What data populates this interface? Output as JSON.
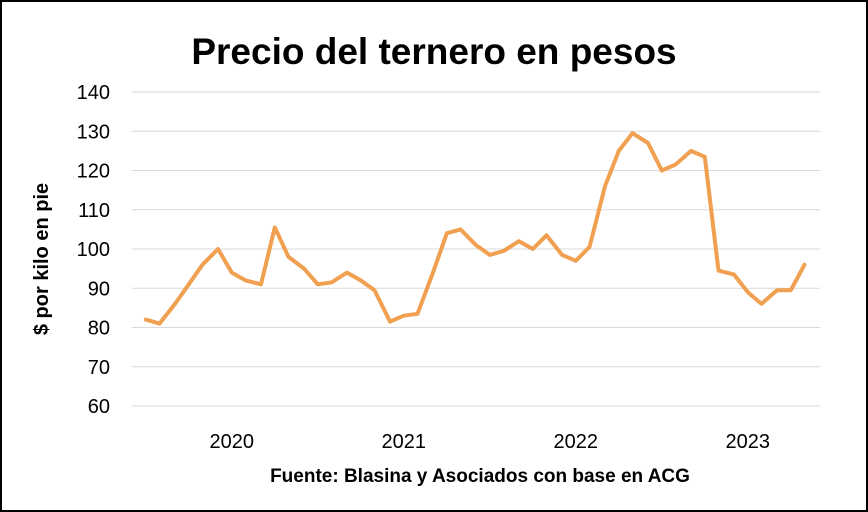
{
  "chart_data": {
    "type": "line",
    "title": "Precio del ternero en pesos",
    "ylabel": "$ por kilo en pie",
    "xlabel": "",
    "ylim": [
      60,
      140
    ],
    "yticks": [
      60,
      70,
      80,
      90,
      100,
      110,
      120,
      130,
      140
    ],
    "grid": true,
    "legend": "none",
    "source": "Fuente: Blasina y Asociados con base en ACG",
    "x_tick_labels": [
      "2020",
      "2021",
      "2022",
      "2023"
    ],
    "x_range": [
      2019.42,
      2023.42
    ],
    "series": [
      {
        "color": "#f0a050",
        "x": [
          2019.5,
          2019.58,
          2019.67,
          2019.75,
          2019.83,
          2019.92,
          2020.0,
          2020.08,
          2020.17,
          2020.25,
          2020.33,
          2020.42,
          2020.5,
          2020.58,
          2020.67,
          2020.75,
          2020.83,
          2020.92,
          2021.0,
          2021.08,
          2021.17,
          2021.25,
          2021.33,
          2021.42,
          2021.5,
          2021.58,
          2021.67,
          2021.75,
          2021.83,
          2021.92,
          2022.0,
          2022.08,
          2022.17,
          2022.25,
          2022.33,
          2022.42,
          2022.5,
          2022.58,
          2022.67,
          2022.75,
          2022.83,
          2022.92,
          2023.0,
          2023.08,
          2023.17,
          2023.25,
          2023.33
        ],
        "y": [
          82,
          81,
          86,
          91,
          96,
          100,
          94,
          92,
          91,
          105.5,
          98,
          95,
          91,
          91.5,
          94,
          92,
          89.5,
          81.5,
          83,
          83.5,
          94,
          104,
          105,
          101,
          98.5,
          99.5,
          102,
          100,
          103.5,
          98.5,
          97,
          100.5,
          116,
          125,
          129.5,
          127,
          120,
          121.5,
          125,
          123.5,
          94.5,
          93.5,
          89,
          86,
          89.5,
          89.5,
          96
        ]
      }
    ]
  }
}
